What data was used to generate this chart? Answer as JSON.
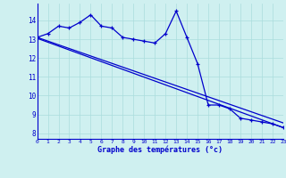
{
  "xlabel": "Graphe des températures (°c)",
  "background_color": "#cff0f0",
  "line_color": "#0000cc",
  "grid_color": "#aadddd",
  "x_ticks": [
    0,
    1,
    2,
    3,
    4,
    5,
    6,
    7,
    8,
    9,
    10,
    11,
    12,
    13,
    14,
    15,
    16,
    17,
    18,
    19,
    20,
    21,
    22,
    23
  ],
  "y_ticks": [
    8,
    9,
    10,
    11,
    12,
    13,
    14
  ],
  "ylim": [
    7.7,
    14.9
  ],
  "xlim": [
    0,
    23
  ],
  "series1": [
    13.1,
    13.3,
    13.7,
    13.6,
    13.9,
    14.3,
    13.7,
    13.6,
    13.1,
    13.0,
    12.9,
    12.8,
    13.3,
    14.5,
    13.1,
    11.7,
    9.5,
    9.5,
    9.3,
    8.8,
    8.7,
    8.6,
    8.5,
    8.3
  ],
  "series2_start": 13.1,
  "series2_end": 8.55,
  "series3_start": 13.05,
  "series3_end": 8.3
}
